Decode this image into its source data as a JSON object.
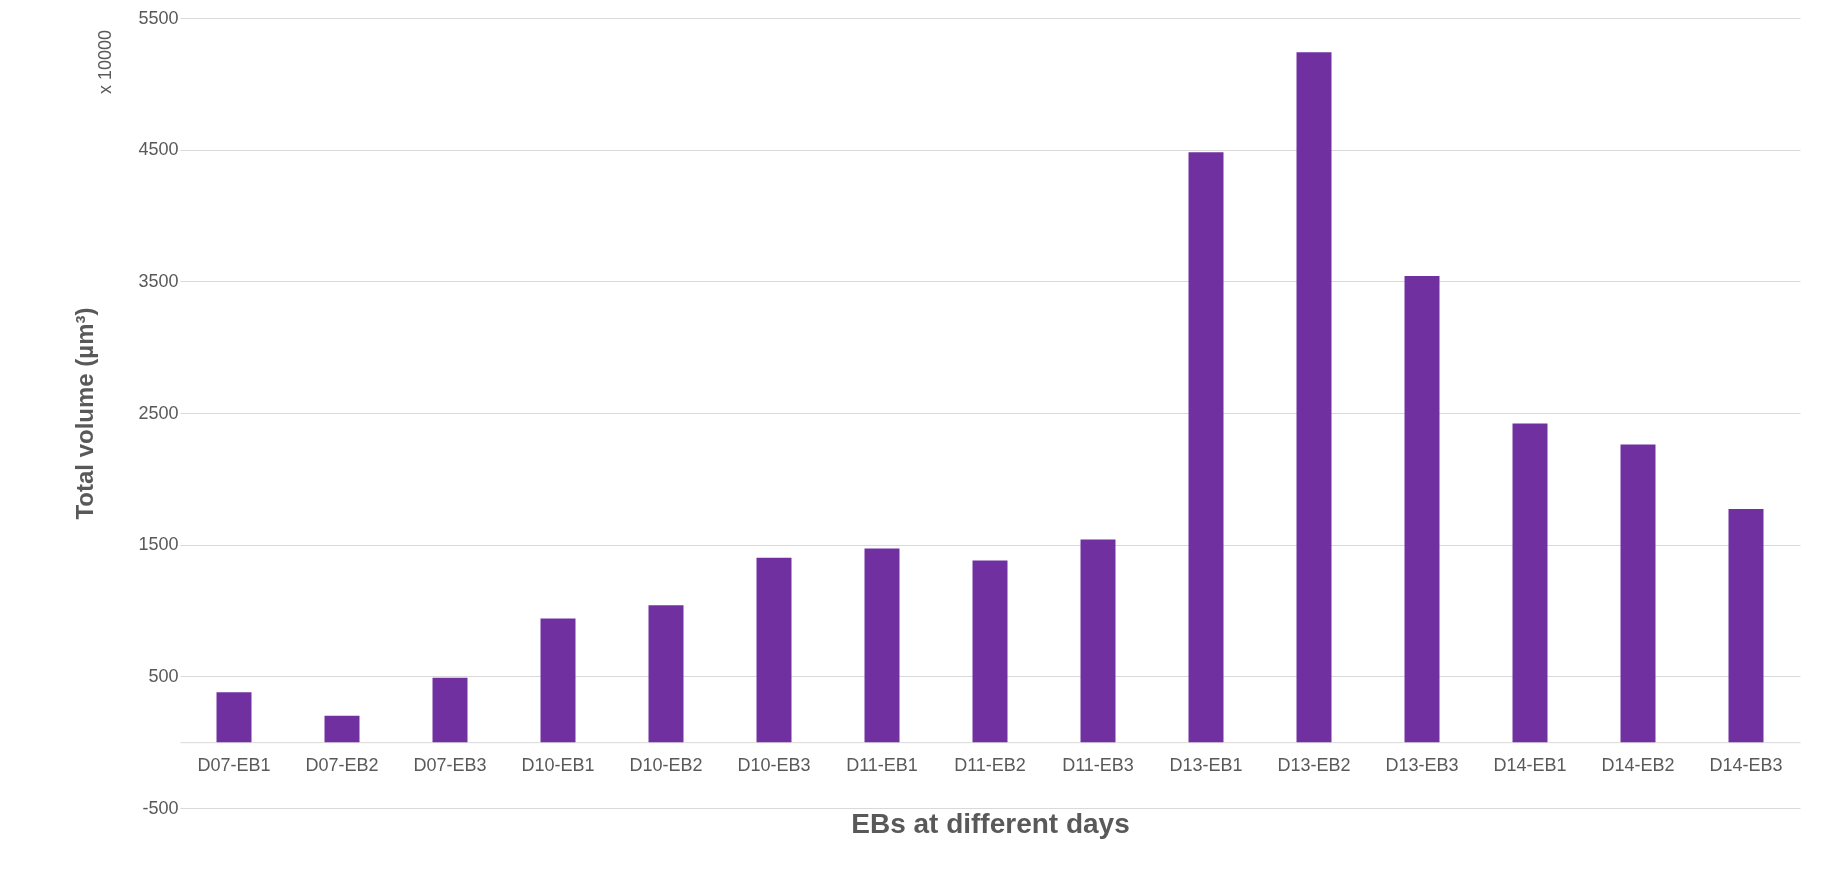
{
  "chart_data": {
    "type": "bar",
    "xlabel": "EBs at different days",
    "ylabel": "Total volume (µm³)",
    "categories": [
      "D07-EB1",
      "D07-EB2",
      "D07-EB3",
      "D10-EB1",
      "D10-EB2",
      "D10-EB3",
      "D11-EB1",
      "D11-EB2",
      "D11-EB3",
      "D13-EB1",
      "D13-EB2",
      "D13-EB3",
      "D14-EB1",
      "D14-EB2",
      "D14-EB3"
    ],
    "values": [
      380,
      200,
      490,
      940,
      1040,
      1400,
      1470,
      1380,
      1540,
      4480,
      5240,
      3540,
      2420,
      2260,
      1770
    ],
    "color": "#7030a0",
    "ylim": [
      -500,
      5500
    ],
    "yticks": [
      -500,
      500,
      1500,
      2500,
      3500,
      4500,
      5500
    ],
    "grid": "y",
    "annotations": [
      "x 10000"
    ]
  }
}
